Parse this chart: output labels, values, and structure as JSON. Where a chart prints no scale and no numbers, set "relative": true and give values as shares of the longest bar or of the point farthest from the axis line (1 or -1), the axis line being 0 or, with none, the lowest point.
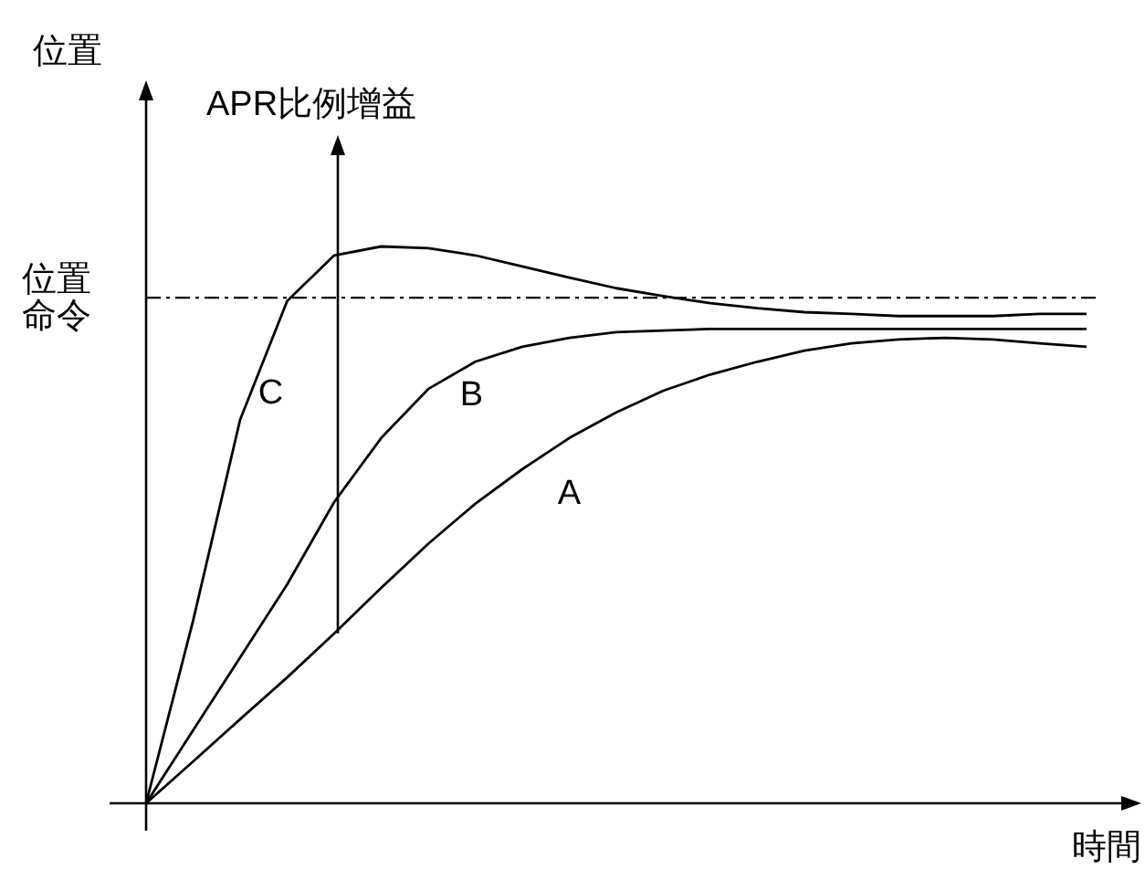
{
  "chart_data": {
    "type": "line",
    "relative": true,
    "xlabel": "時間",
    "marker": "none",
    "line_style": "solid",
    "categories": [
      null,
      null,
      null,
      null,
      null,
      null,
      null,
      null,
      null,
      null,
      null,
      null,
      null,
      null,
      null,
      null,
      null,
      null,
      null,
      null,
      null
    ],
    "series": [
      {
        "name": "A",
        "color": "#000000",
        "values": [
          0,
          0.075,
          0.151,
          0.226,
          0.305,
          0.387,
          0.466,
          0.538,
          0.6,
          0.656,
          0.702,
          0.741,
          0.77,
          0.793,
          0.813,
          0.826,
          0.833,
          0.836,
          0.833,
          0.826,
          0.82
        ]
      },
      {
        "name": "B",
        "color": "#000000",
        "values": [
          0,
          0.131,
          0.262,
          0.393,
          0.541,
          0.656,
          0.744,
          0.793,
          0.82,
          0.836,
          0.846,
          0.849,
          0.852,
          0.852,
          0.852,
          0.852,
          0.852,
          0.852,
          0.852,
          0.852,
          0.852
        ]
      },
      {
        "name": "C",
        "color": "#000000",
        "values": [
          0,
          0.328,
          0.689,
          0.902,
          0.984,
          1.0,
          0.997,
          0.984,
          0.964,
          0.944,
          0.925,
          0.911,
          0.898,
          0.889,
          0.882,
          0.879,
          0.875,
          0.875,
          0.875,
          0.879,
          0.879
        ]
      }
    ],
    "ref_lines": [
      {
        "axis": "y",
        "value": 0.908,
        "label": "位置命令",
        "line_style": "dashed",
        "color": "#000000"
      }
    ],
    "annotations": [
      "APR比例增益",
      "位置"
    ]
  }
}
